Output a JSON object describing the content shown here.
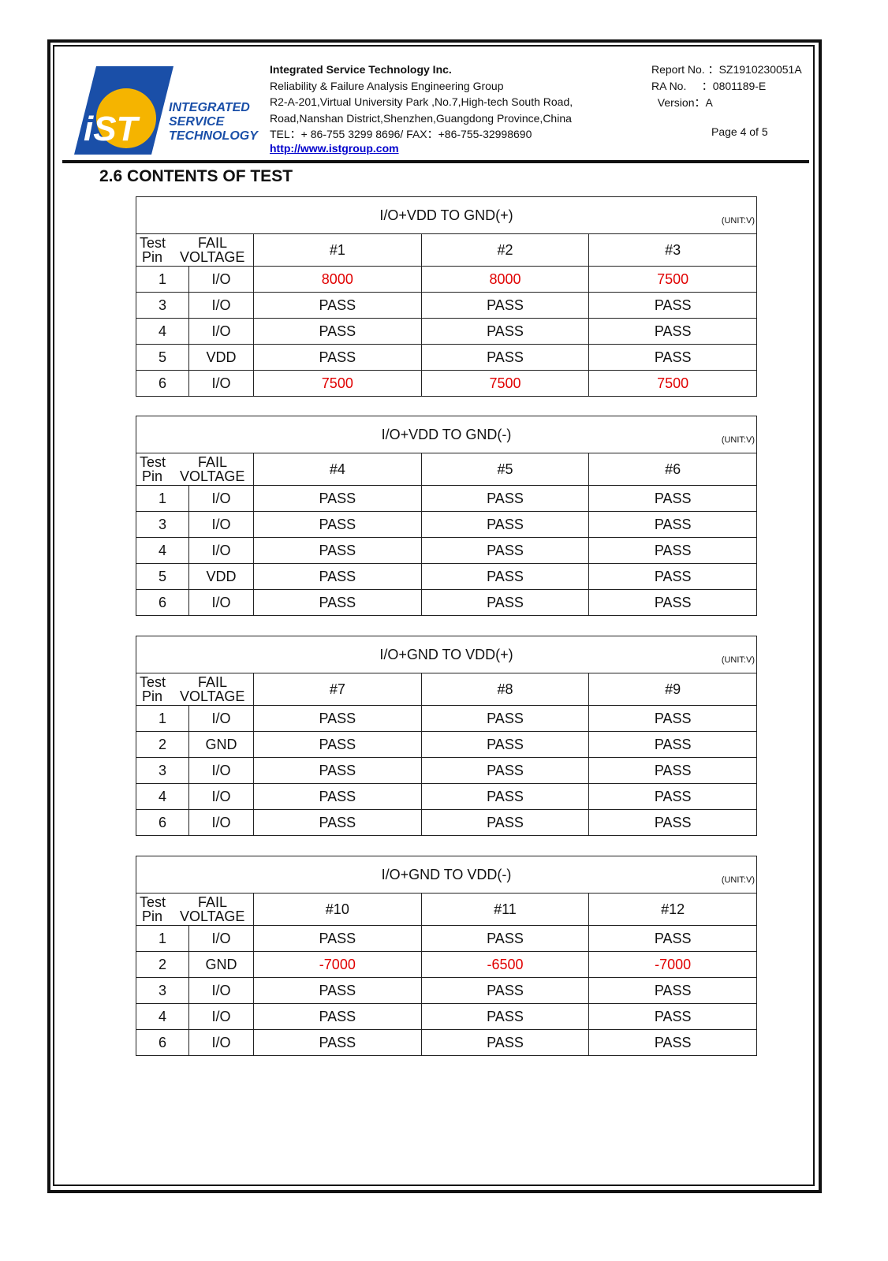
{
  "header": {
    "logo": {
      "mark": "iST",
      "text": [
        "INTEGRATED",
        "SERVICE",
        "TECHNOLOGY"
      ]
    },
    "company": "Integrated Service Technology Inc.",
    "group": "Reliability & Failure Analysis Engineering Group",
    "address1": "R2-A-201,Virtual University Park ,No.7,High-tech South Road,",
    "address2": "Road,Nanshan District,Shenzhen,Guangdong Province,China",
    "tel": "TEL：+ 86-755 3299 8696/ FAX：+86-755-32998690",
    "url": "http://www.istgroup.com",
    "report_no": "Report No. ：SZ1910230051A",
    "ra_no": "RA No.     ：0801189-E",
    "version": "  Version：A",
    "page": "Page 4 of 5"
  },
  "section_title": "2.6 CONTENTS OF TEST",
  "colors": {
    "fail": "#e00000",
    "logo_blue": "#1a4fa8",
    "logo_yellow": "#f5b400"
  },
  "tables": [
    {
      "title": "I/O+VDD TO GND(+)",
      "unit": "(UNIT:V)",
      "h1": "Test",
      "h2": "FAIL",
      "h3": "Pin",
      "h4": "VOLTAGE",
      "samples": [
        "#1",
        "#2",
        "#3"
      ],
      "rows": [
        {
          "pin": "1",
          "type": "I/O",
          "vals": [
            "8000",
            "8000",
            "7500"
          ]
        },
        {
          "pin": "3",
          "type": "I/O",
          "vals": [
            "PASS",
            "PASS",
            "PASS"
          ]
        },
        {
          "pin": "4",
          "type": "I/O",
          "vals": [
            "PASS",
            "PASS",
            "PASS"
          ]
        },
        {
          "pin": "5",
          "type": "VDD",
          "vals": [
            "PASS",
            "PASS",
            "PASS"
          ]
        },
        {
          "pin": "6",
          "type": "I/O",
          "vals": [
            "7500",
            "7500",
            "7500"
          ]
        }
      ]
    },
    {
      "title": "I/O+VDD TO GND(-)",
      "unit": "(UNIT:V)",
      "h1": "Test",
      "h2": "FAIL",
      "h3": "Pin",
      "h4": "VOLTAGE",
      "samples": [
        "#4",
        "#5",
        "#6"
      ],
      "rows": [
        {
          "pin": "1",
          "type": "I/O",
          "vals": [
            "PASS",
            "PASS",
            "PASS"
          ]
        },
        {
          "pin": "3",
          "type": "I/O",
          "vals": [
            "PASS",
            "PASS",
            "PASS"
          ]
        },
        {
          "pin": "4",
          "type": "I/O",
          "vals": [
            "PASS",
            "PASS",
            "PASS"
          ]
        },
        {
          "pin": "5",
          "type": "VDD",
          "vals": [
            "PASS",
            "PASS",
            "PASS"
          ]
        },
        {
          "pin": "6",
          "type": "I/O",
          "vals": [
            "PASS",
            "PASS",
            "PASS"
          ]
        }
      ]
    },
    {
      "title": "I/O+GND TO VDD(+)",
      "unit": "(UNIT:V)",
      "h1": "Test",
      "h2": "FAIL",
      "h3": "Pin",
      "h4": "VOLTAGE",
      "samples": [
        "#7",
        "#8",
        "#9"
      ],
      "rows": [
        {
          "pin": "1",
          "type": "I/O",
          "vals": [
            "PASS",
            "PASS",
            "PASS"
          ]
        },
        {
          "pin": "2",
          "type": "GND",
          "vals": [
            "PASS",
            "PASS",
            "PASS"
          ]
        },
        {
          "pin": "3",
          "type": "I/O",
          "vals": [
            "PASS",
            "PASS",
            "PASS"
          ]
        },
        {
          "pin": "4",
          "type": "I/O",
          "vals": [
            "PASS",
            "PASS",
            "PASS"
          ]
        },
        {
          "pin": "6",
          "type": "I/O",
          "vals": [
            "PASS",
            "PASS",
            "PASS"
          ]
        }
      ]
    },
    {
      "title": "I/O+GND TO VDD(-)",
      "unit": "(UNIT:V)",
      "h1": "Test",
      "h2": "FAIL",
      "h3": "Pin",
      "h4": "VOLTAGE",
      "samples": [
        "#10",
        "#11",
        "#12"
      ],
      "rows": [
        {
          "pin": "1",
          "type": "I/O",
          "vals": [
            "PASS",
            "PASS",
            "PASS"
          ]
        },
        {
          "pin": "2",
          "type": "GND",
          "vals": [
            "-7000",
            "-6500",
            "-7000"
          ]
        },
        {
          "pin": "3",
          "type": "I/O",
          "vals": [
            "PASS",
            "PASS",
            "PASS"
          ]
        },
        {
          "pin": "4",
          "type": "I/O",
          "vals": [
            "PASS",
            "PASS",
            "PASS"
          ]
        },
        {
          "pin": "6",
          "type": "I/O",
          "vals": [
            "PASS",
            "PASS",
            "PASS"
          ]
        }
      ]
    }
  ]
}
